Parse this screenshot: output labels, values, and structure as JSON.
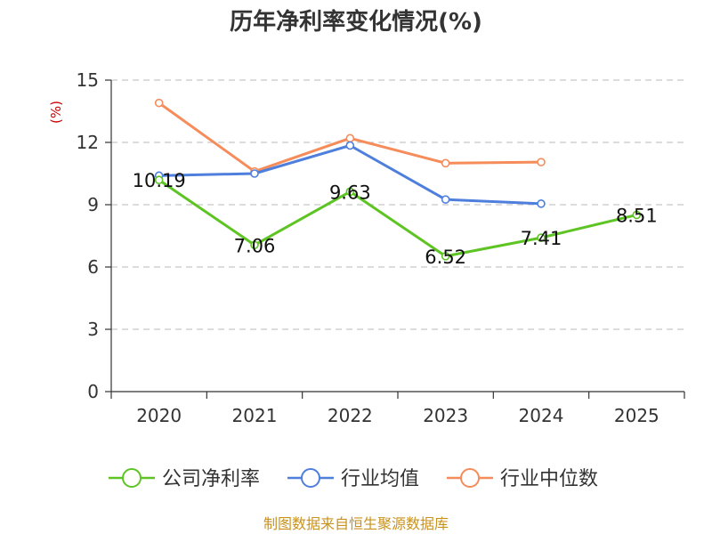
{
  "chart_data": {
    "type": "line",
    "title": "历年净利率变化情况(%)",
    "ylabel": "(%)",
    "categories": [
      "2020",
      "2021",
      "2022",
      "2023",
      "2024",
      "2025"
    ],
    "ylim": [
      0,
      15
    ],
    "yticks": [
      0,
      3,
      6,
      9,
      12,
      15
    ],
    "grid": true,
    "legend_position": "bottom",
    "series": [
      {
        "name": "公司净利率",
        "color": "#5ec424",
        "values": [
          10.19,
          7.06,
          9.63,
          6.52,
          7.41,
          8.51
        ],
        "labels": [
          "10.19",
          "7.06",
          "9.63",
          "6.52",
          "7.41",
          "8.51"
        ]
      },
      {
        "name": "行业均值",
        "color": "#4e7fdc",
        "values": [
          10.4,
          10.5,
          11.85,
          9.25,
          9.05,
          null
        ]
      },
      {
        "name": "行业中位数",
        "color": "#f58c5a",
        "values": [
          13.9,
          10.6,
          12.2,
          11.0,
          11.05,
          null
        ]
      }
    ]
  },
  "source": "制图数据来自恒生聚源数据库"
}
